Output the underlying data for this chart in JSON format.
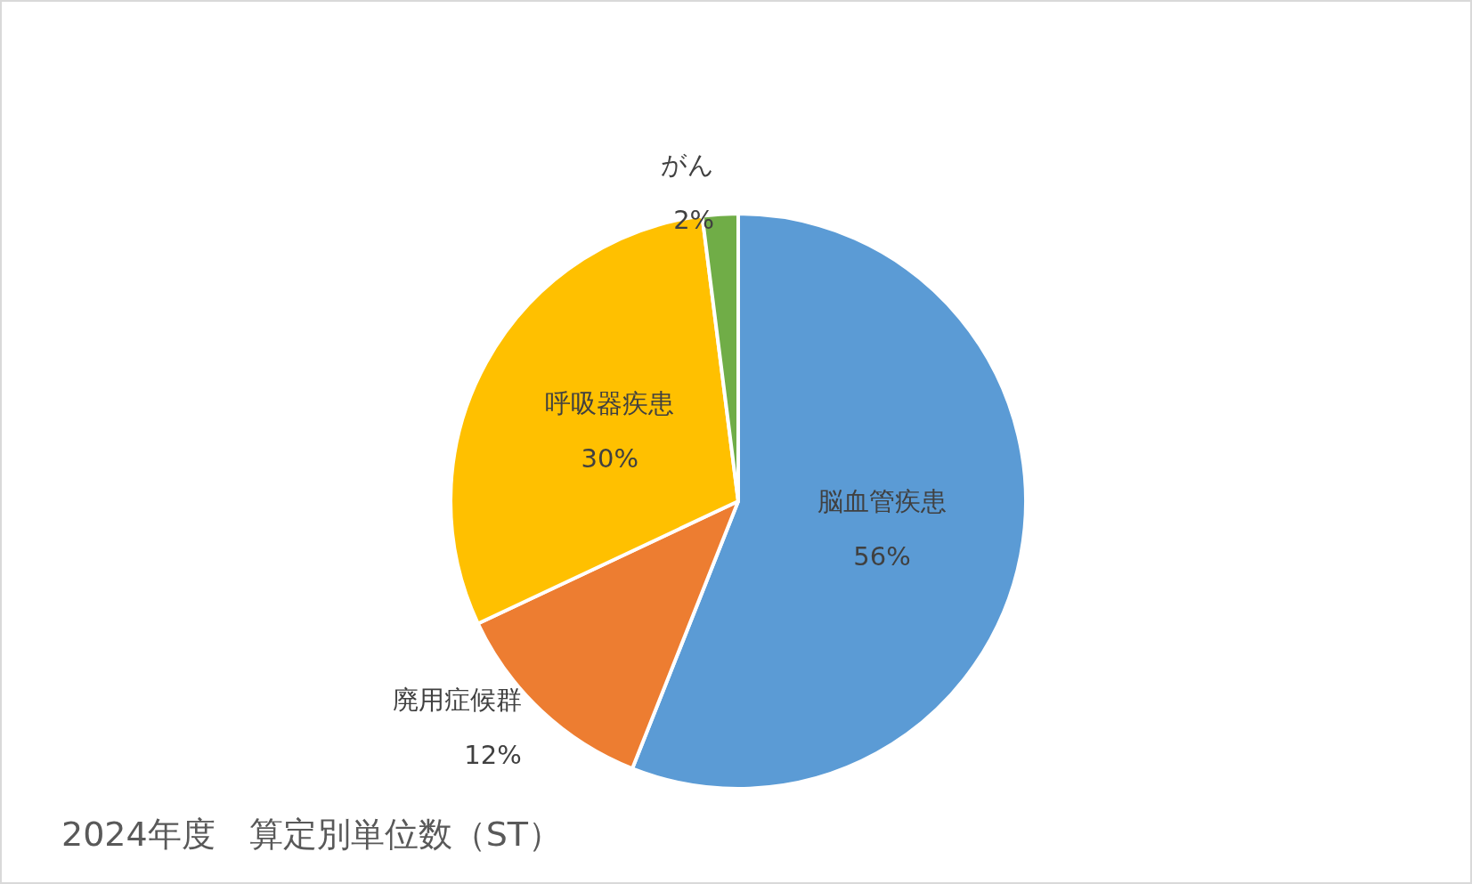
{
  "chart_data": {
    "type": "pie",
    "title": "2024年度　算定別単位数（ST）",
    "categories": [
      "脳血管疾患",
      "廃用症候群",
      "呼吸器疾患",
      "がん"
    ],
    "values": [
      56,
      12,
      30,
      2
    ],
    "colors": [
      "#5b9bd5",
      "#ed7d31",
      "#ffc000",
      "#70ad47"
    ],
    "value_labels": [
      "56%",
      "12%",
      "30%",
      "2%"
    ],
    "legend": false
  }
}
